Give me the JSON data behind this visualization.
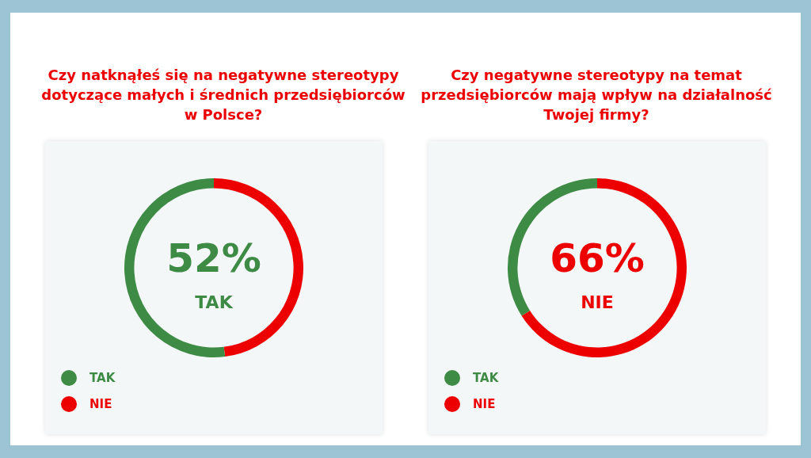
{
  "chart_data": [
    {
      "type": "donut",
      "title": "Czy natknąłeś się na negatywne stereotypy dotyczące małych i średnich przedsiębiorców w Polsce?",
      "categories": [
        "TAK",
        "NIE"
      ],
      "values": [
        52,
        48
      ],
      "colors": [
        "#3d8b45",
        "#ec0000"
      ],
      "value_labels": [
        "52%",
        null
      ],
      "legend": "bottom left"
    },
    {
      "type": "donut",
      "title": "Czy negatywne stereotypy na temat przedsiębiorców mają wpływ na działalność Twojej firmy?",
      "categories": [
        "TAK",
        "NIE"
      ],
      "values": [
        34,
        66
      ],
      "colors": [
        "#3d8b45",
        "#ec0000"
      ],
      "value_labels": [
        null,
        "66%"
      ],
      "legend": "bottom left"
    }
  ]
}
